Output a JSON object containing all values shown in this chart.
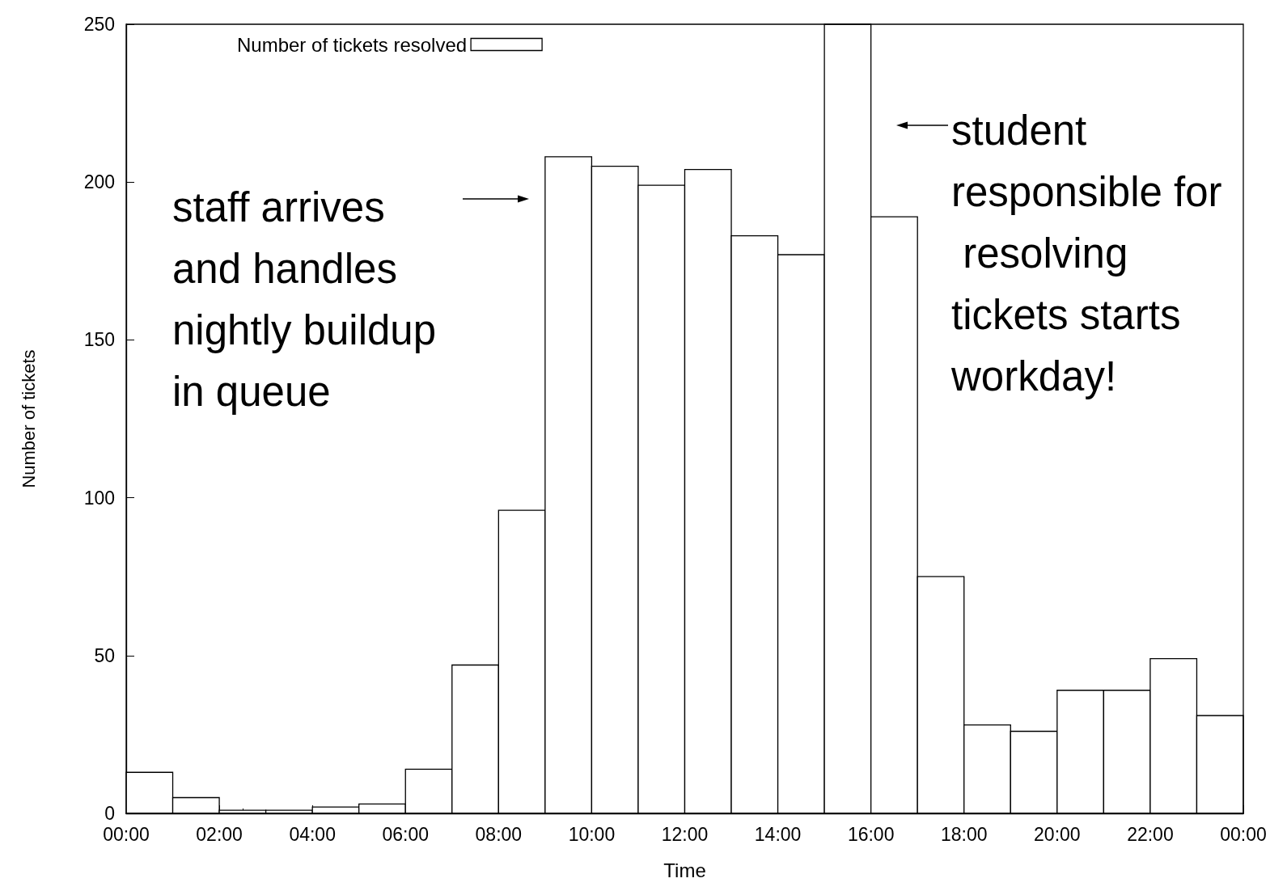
{
  "chart_data": {
    "type": "histogram",
    "xlabel": "Time",
    "ylabel": "Number of tickets",
    "bins": [
      0,
      1,
      2,
      3,
      4,
      5,
      6,
      7,
      8,
      9,
      10,
      11,
      12,
      13,
      14,
      15,
      16,
      17,
      18,
      19,
      20,
      21,
      22,
      23,
      24
    ],
    "series": [
      {
        "name": "Number of tickets resolved",
        "color": "#ffffff",
        "values": [
          13,
          5,
          1,
          1,
          2,
          3,
          14,
          47,
          96,
          208,
          205,
          199,
          204,
          183,
          177,
          250,
          189,
          75,
          28,
          26,
          39,
          39,
          49,
          31
        ]
      }
    ],
    "xlim": [
      0,
      24
    ],
    "xticks": [
      {
        "value": 0,
        "label": "00:00"
      },
      {
        "value": 2,
        "label": "02:00"
      },
      {
        "value": 4,
        "label": "04:00"
      },
      {
        "value": 6,
        "label": "06:00"
      },
      {
        "value": 8,
        "label": "08:00"
      },
      {
        "value": 10,
        "label": "10:00"
      },
      {
        "value": 12,
        "label": "12:00"
      },
      {
        "value": 14,
        "label": "14:00"
      },
      {
        "value": 16,
        "label": "16:00"
      },
      {
        "value": 18,
        "label": "18:00"
      },
      {
        "value": 20,
        "label": "20:00"
      },
      {
        "value": 22,
        "label": "22:00"
      },
      {
        "value": 24,
        "label": "00:00"
      }
    ],
    "ylim": [
      0,
      250
    ],
    "yticks": [
      0,
      50,
      100,
      150,
      200,
      250
    ],
    "grid": false,
    "legend": "top left",
    "annotations": [
      "staff arrives and handles nightly buildup in queue",
      "student responsible for resolving tickets starts workday!"
    ]
  }
}
